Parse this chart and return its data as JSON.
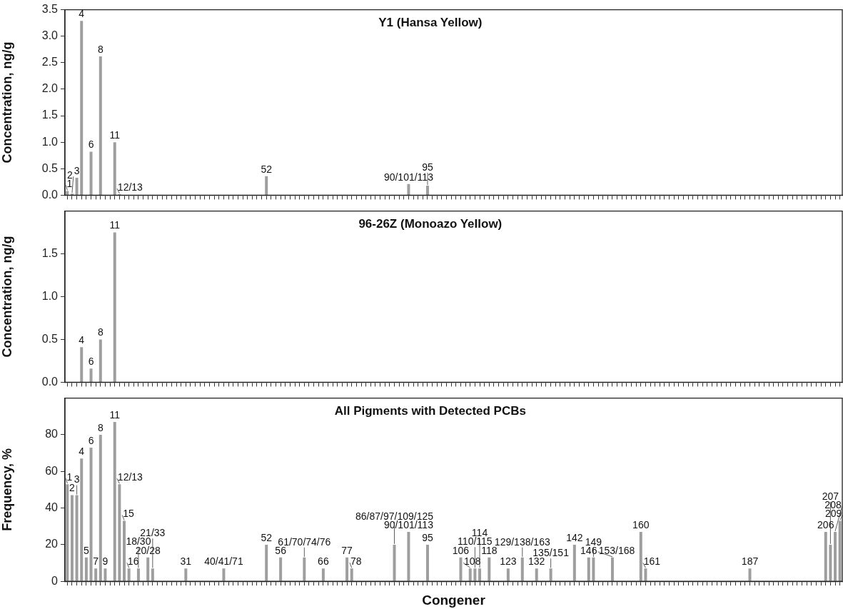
{
  "chart_data": [
    {
      "type": "bar",
      "title": "Y1 (Hansa Yellow)",
      "ylabel": "Concentration, ng/g",
      "color": "#9e9e9e",
      "tick_labels": "y",
      "ylim": [
        0,
        3.5
      ],
      "yticks": [
        {
          "value": 0,
          "label": "0.0"
        },
        {
          "value": 0.5,
          "label": "0.5"
        },
        {
          "value": 1,
          "label": "1.0"
        },
        {
          "value": 1.5,
          "label": "1.5"
        },
        {
          "value": 2,
          "label": "2.0"
        },
        {
          "value": 2.5,
          "label": "2.5"
        },
        {
          "value": 3,
          "label": "3.0"
        },
        {
          "value": 3.5,
          "label": "3.5"
        }
      ],
      "categories": [
        "1",
        "2",
        "3",
        "4",
        null,
        "6",
        null,
        "8",
        null,
        null,
        "11",
        "12/13",
        null,
        null,
        null,
        null,
        null,
        null,
        null,
        null,
        null,
        null,
        null,
        null,
        null,
        null,
        null,
        null,
        null,
        null,
        null,
        null,
        null,
        null,
        null,
        null,
        null,
        null,
        null,
        null,
        null,
        null,
        "52",
        null,
        null,
        null,
        null,
        null,
        null,
        null,
        null,
        null,
        null,
        null,
        null,
        null,
        null,
        null,
        null,
        null,
        null,
        null,
        null,
        null,
        null,
        null,
        null,
        null,
        null,
        null,
        null,
        null,
        "90/101/113",
        null,
        null,
        null,
        "95",
        null,
        null,
        null,
        null,
        null,
        null,
        null,
        null,
        null,
        null,
        null,
        null,
        null,
        null,
        null,
        null,
        null,
        null,
        null,
        null,
        null,
        null,
        null,
        null,
        null,
        null,
        null,
        null,
        null,
        null,
        null,
        null,
        null,
        null,
        null,
        null,
        null,
        null,
        null,
        null,
        null,
        null,
        null,
        null,
        null,
        null,
        null,
        null,
        null,
        null,
        null,
        null,
        null,
        null,
        null,
        null,
        null,
        null,
        null,
        null,
        null,
        null,
        null,
        null,
        null,
        null,
        null,
        null,
        null,
        null,
        null,
        null,
        null,
        null,
        null,
        null,
        null,
        null,
        null,
        null,
        null,
        null,
        null,
        null,
        null,
        null,
        null
      ],
      "values": [
        0.08,
        0.03,
        0.33,
        3.29,
        null,
        0.82,
        null,
        2.62,
        null,
        null,
        1.0,
        0.02,
        null,
        null,
        null,
        null,
        null,
        null,
        null,
        null,
        null,
        null,
        null,
        null,
        null,
        null,
        null,
        null,
        null,
        null,
        null,
        null,
        null,
        null,
        null,
        null,
        null,
        null,
        null,
        null,
        null,
        null,
        0.36,
        null,
        null,
        null,
        null,
        null,
        null,
        null,
        null,
        null,
        null,
        null,
        null,
        null,
        null,
        null,
        null,
        null,
        null,
        null,
        null,
        null,
        null,
        null,
        null,
        null,
        null,
        null,
        null,
        null,
        0.21,
        null,
        null,
        null,
        0.18,
        null,
        null,
        null,
        null,
        null,
        null,
        null,
        null,
        null,
        null,
        null,
        null,
        null,
        null,
        null,
        null,
        null,
        null,
        null,
        null,
        null,
        null,
        null,
        null,
        null,
        null,
        null,
        null,
        null,
        null,
        null,
        null,
        null,
        null,
        null,
        null,
        null,
        null,
        null,
        null,
        null,
        null,
        null,
        null,
        null,
        null,
        null,
        null,
        null,
        null,
        null,
        null,
        null,
        null,
        null,
        null,
        null,
        null,
        null,
        null,
        null,
        null,
        null,
        null,
        null,
        null,
        null,
        null,
        null,
        null,
        null,
        null,
        null,
        null,
        null,
        null,
        null,
        null,
        null,
        null,
        null,
        null,
        null,
        null,
        null,
        null,
        null
      ]
    },
    {
      "type": "bar",
      "title": "96-26Z (Monoazo Yellow)",
      "ylabel": "Concentration, ng/g",
      "color": "#9e9e9e",
      "tick_labels": "y",
      "ylim": [
        0,
        2
      ],
      "yticks": [
        {
          "value": 0,
          "label": "0.0"
        },
        {
          "value": 0.5,
          "label": "0.5"
        },
        {
          "value": 1,
          "label": "1.0"
        },
        {
          "value": 1.5,
          "label": "1.5"
        }
      ],
      "categories": [
        null,
        null,
        null,
        "4",
        null,
        "6",
        null,
        "8",
        null,
        null,
        "11",
        null,
        null,
        null,
        null,
        null,
        null,
        null,
        null,
        null,
        null,
        null,
        null,
        null,
        null,
        null,
        null,
        null,
        null,
        null,
        null,
        null,
        null,
        null,
        null,
        null,
        null,
        null,
        null,
        null,
        null,
        null,
        null,
        null,
        null,
        null,
        null,
        null,
        null,
        null,
        null,
        null,
        null,
        null,
        null,
        null,
        null,
        null,
        null,
        null,
        null,
        null,
        null,
        null,
        null,
        null,
        null,
        null,
        null,
        null,
        null,
        null,
        null,
        null,
        null,
        null,
        null,
        null,
        null,
        null,
        null,
        null,
        null,
        null,
        null,
        null,
        null,
        null,
        null,
        null,
        null,
        null,
        null,
        null,
        null,
        null,
        null,
        null,
        null,
        null,
        null,
        null,
        null,
        null,
        null,
        null,
        null,
        null,
        null,
        null,
        null,
        null,
        null,
        null,
        null,
        null,
        null,
        null,
        null,
        null,
        null,
        null,
        null,
        null,
        null,
        null,
        null,
        null,
        null,
        null,
        null,
        null,
        null,
        null,
        null,
        null,
        null,
        null,
        null,
        null,
        null,
        null,
        null,
        null,
        null,
        null,
        null,
        null,
        null,
        null,
        null,
        null,
        null,
        null,
        null,
        null,
        null,
        null,
        null,
        null,
        null,
        null,
        null,
        null
      ],
      "values": [
        null,
        null,
        null,
        0.41,
        null,
        0.16,
        null,
        0.5,
        null,
        null,
        1.75,
        null,
        null,
        null,
        null,
        null,
        null,
        null,
        null,
        null,
        null,
        null,
        null,
        null,
        null,
        null,
        null,
        null,
        null,
        null,
        null,
        null,
        null,
        null,
        null,
        null,
        null,
        null,
        null,
        null,
        null,
        null,
        null,
        null,
        null,
        null,
        null,
        null,
        null,
        null,
        null,
        null,
        null,
        null,
        null,
        null,
        null,
        null,
        null,
        null,
        null,
        null,
        null,
        null,
        null,
        null,
        null,
        null,
        null,
        null,
        null,
        null,
        null,
        null,
        null,
        null,
        null,
        null,
        null,
        null,
        null,
        null,
        null,
        null,
        null,
        null,
        null,
        null,
        null,
        null,
        null,
        null,
        null,
        null,
        null,
        null,
        null,
        null,
        null,
        null,
        null,
        null,
        null,
        null,
        null,
        null,
        null,
        null,
        null,
        null,
        null,
        null,
        null,
        null,
        null,
        null,
        null,
        null,
        null,
        null,
        null,
        null,
        null,
        null,
        null,
        null,
        null,
        null,
        null,
        null,
        null,
        null,
        null,
        null,
        null,
        null,
        null,
        null,
        null,
        null,
        null,
        null,
        null,
        null,
        null,
        null,
        null,
        null,
        null,
        null,
        null,
        null,
        null,
        null,
        null,
        null,
        null,
        null,
        null,
        null,
        null,
        null,
        null,
        null
      ]
    },
    {
      "type": "bar",
      "title": "All Pigments with Detected PCBs",
      "ylabel": "Frequency, %",
      "xlabel": "Congener",
      "color": "#9e9e9e",
      "tick_labels": "y",
      "ylim": [
        0,
        100
      ],
      "yticks": [
        0,
        20,
        40,
        60,
        80
      ],
      "categories": [
        "1",
        "2",
        "3",
        "4",
        "5",
        "6",
        "7",
        "8",
        "9",
        null,
        "11",
        "12/13",
        "15",
        "16",
        null,
        "18/30",
        null,
        "20/28",
        "21/33",
        null,
        null,
        null,
        null,
        null,
        null,
        "31",
        null,
        null,
        null,
        null,
        null,
        null,
        null,
        "40/41/71",
        null,
        null,
        null,
        null,
        null,
        null,
        null,
        null,
        "52",
        null,
        null,
        "56",
        null,
        null,
        null,
        null,
        "61/70/74/76",
        null,
        null,
        null,
        "66",
        null,
        null,
        null,
        null,
        "77",
        "78",
        null,
        null,
        null,
        null,
        null,
        null,
        null,
        null,
        "86/87/97/109/125",
        null,
        null,
        "90/101/113",
        null,
        null,
        null,
        "95",
        null,
        null,
        null,
        null,
        null,
        null,
        "106",
        null,
        "108",
        "110/115",
        "114",
        null,
        "118",
        null,
        null,
        null,
        "123",
        null,
        null,
        "129/138/163",
        null,
        null,
        "132",
        null,
        null,
        "135/151",
        null,
        null,
        null,
        null,
        "142",
        null,
        null,
        "146",
        "149",
        null,
        null,
        null,
        "153/168",
        null,
        null,
        null,
        null,
        null,
        "160",
        "161",
        null,
        null,
        null,
        null,
        null,
        null,
        null,
        null,
        null,
        null,
        null,
        null,
        null,
        null,
        null,
        null,
        null,
        null,
        null,
        null,
        null,
        "187",
        null,
        null,
        null,
        null,
        null,
        null,
        null,
        null,
        null,
        null,
        null,
        null,
        null,
        null,
        null,
        "206",
        "207",
        "208",
        "209"
      ],
      "values": [
        53,
        47,
        47,
        67,
        13,
        73,
        7,
        80,
        7,
        null,
        87,
        53,
        33,
        7,
        null,
        7,
        null,
        13,
        7,
        null,
        null,
        null,
        null,
        null,
        null,
        7,
        null,
        null,
        null,
        null,
        null,
        null,
        null,
        7,
        null,
        null,
        null,
        null,
        null,
        null,
        null,
        null,
        20,
        null,
        null,
        13,
        null,
        null,
        null,
        null,
        13,
        null,
        null,
        null,
        7,
        null,
        null,
        null,
        null,
        13,
        7,
        null,
        null,
        null,
        null,
        null,
        null,
        null,
        null,
        20,
        null,
        null,
        27,
        null,
        null,
        null,
        20,
        null,
        null,
        null,
        null,
        null,
        null,
        13,
        null,
        7,
        7,
        7,
        null,
        13,
        null,
        null,
        null,
        7,
        null,
        null,
        13,
        null,
        null,
        7,
        null,
        null,
        7,
        null,
        null,
        null,
        null,
        20,
        null,
        null,
        13,
        13,
        null,
        null,
        null,
        13,
        null,
        null,
        null,
        null,
        null,
        27,
        7,
        null,
        null,
        null,
        null,
        null,
        null,
        null,
        null,
        null,
        null,
        null,
        null,
        null,
        null,
        null,
        null,
        null,
        null,
        null,
        null,
        null,
        7,
        null,
        null,
        null,
        null,
        null,
        null,
        null,
        null,
        null,
        null,
        null,
        null,
        null,
        null,
        null,
        27,
        20,
        27,
        33
      ]
    }
  ]
}
